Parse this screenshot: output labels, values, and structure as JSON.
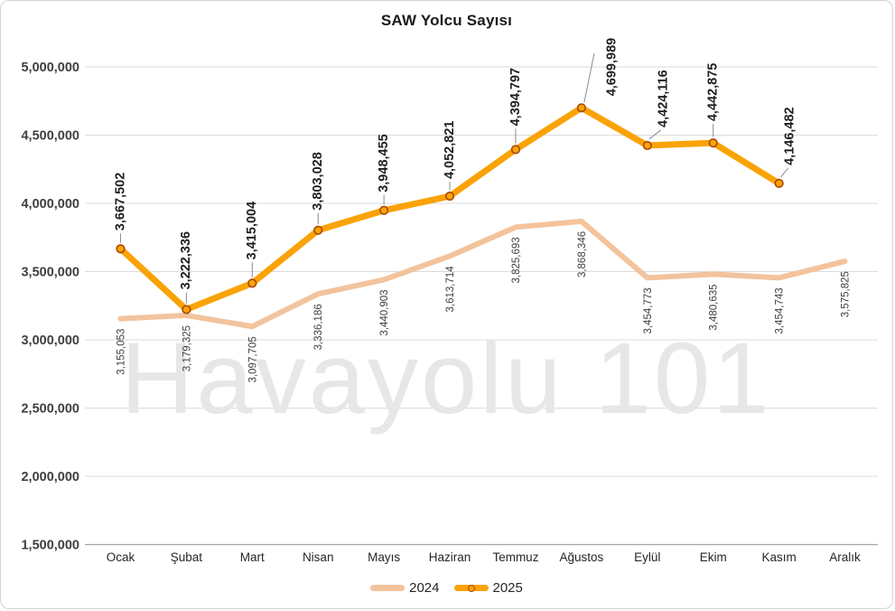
{
  "chart_data": {
    "type": "line",
    "title": "SAW Yolcu Sayısı",
    "watermark": "Havayolu 101",
    "categories": [
      "Ocak",
      "Şubat",
      "Mart",
      "Nisan",
      "Mayıs",
      "Haziran",
      "Temmuz",
      "Ağustos",
      "Eylül",
      "Ekim",
      "Kasım",
      "Aralık"
    ],
    "series": [
      {
        "name": "2024",
        "color": "#F3C39C",
        "values": [
          3155053,
          3179325,
          3097705,
          3336186,
          3440903,
          3613714,
          3825693,
          3868346,
          3454773,
          3480635,
          3454743,
          3575825
        ]
      },
      {
        "name": "2025",
        "color": "#FAA307",
        "marker_fill": "#FAA307",
        "marker_outline": "#A84703",
        "values": [
          3667502,
          3222336,
          3415004,
          3803028,
          3948455,
          4052821,
          4394797,
          4699989,
          4424116,
          4442875,
          4146482,
          null
        ]
      }
    ],
    "ylim": [
      1500000,
      5000000
    ],
    "ytick_step": 500000,
    "ytick_labels": [
      "1,500,000",
      "2,000,000",
      "2,500,000",
      "3,000,000",
      "3,500,000",
      "4,000,000",
      "4,500,000",
      "5,000,000"
    ],
    "grid": true,
    "legend_position": "bottom",
    "colors": {
      "gridline": "#dbdbdb",
      "axis_line": "#a6a6a6",
      "axis_text": "#3f3f3f",
      "data_label_2025": "#1f1f1f",
      "data_label_2024": "#404040",
      "leader_line": "#8a8a8a",
      "watermark": "#e7e7e7"
    }
  }
}
